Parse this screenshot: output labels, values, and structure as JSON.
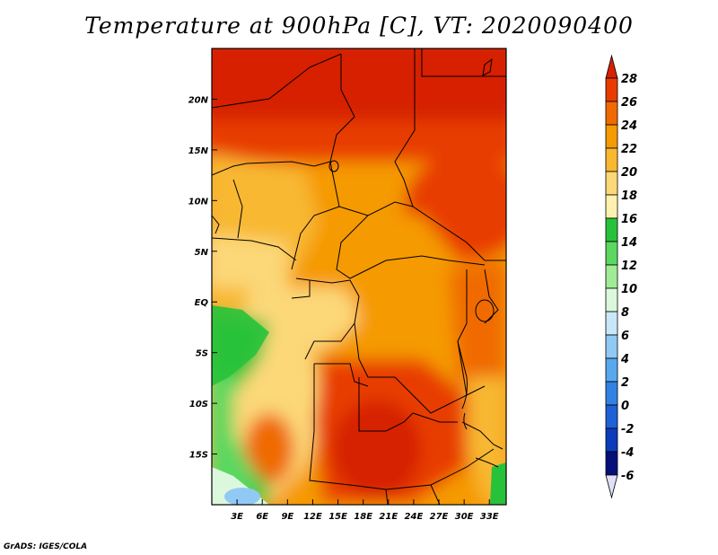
{
  "title": "Temperature at 900hPa [C], VT: 2020090400",
  "credit": "GrADS: IGES/COLA",
  "map": {
    "projection": "latlon",
    "lon_range": [
      0,
      35
    ],
    "lat_range": [
      -20,
      25
    ],
    "lon_ticks": [
      {
        "value": 3,
        "label": "3E"
      },
      {
        "value": 6,
        "label": "6E"
      },
      {
        "value": 9,
        "label": "9E"
      },
      {
        "value": 12,
        "label": "12E"
      },
      {
        "value": 15,
        "label": "15E"
      },
      {
        "value": 18,
        "label": "18E"
      },
      {
        "value": 21,
        "label": "21E"
      },
      {
        "value": 24,
        "label": "24E"
      },
      {
        "value": 27,
        "label": "27E"
      },
      {
        "value": 30,
        "label": "30E"
      },
      {
        "value": 33,
        "label": "33E"
      }
    ],
    "lat_ticks": [
      {
        "value": 20,
        "label": "20N"
      },
      {
        "value": 15,
        "label": "15N"
      },
      {
        "value": 10,
        "label": "10N"
      },
      {
        "value": 5,
        "label": "5N"
      },
      {
        "value": 0,
        "label": "EQ"
      },
      {
        "value": -5,
        "label": "5S"
      },
      {
        "value": -10,
        "label": "10S"
      },
      {
        "value": -15,
        "label": "15S"
      }
    ]
  },
  "colorbar": {
    "labels": [
      "28",
      "26",
      "24",
      "22",
      "20",
      "18",
      "16",
      "14",
      "12",
      "10",
      "8",
      "6",
      "4",
      "2",
      "0",
      "-2",
      "-4",
      "-6"
    ],
    "colors": [
      "#d62000",
      "#e83c00",
      "#f06a00",
      "#f59a00",
      "#f8b830",
      "#fcd878",
      "#fff2b0",
      "#28c23a",
      "#5ad860",
      "#a0ec96",
      "#dcf8dc",
      "#c8e8fa",
      "#90caf4",
      "#58a8ee",
      "#3282e6",
      "#1e60d6",
      "#0c3cbc",
      "#06107a",
      "#e0e0f8"
    ]
  }
}
